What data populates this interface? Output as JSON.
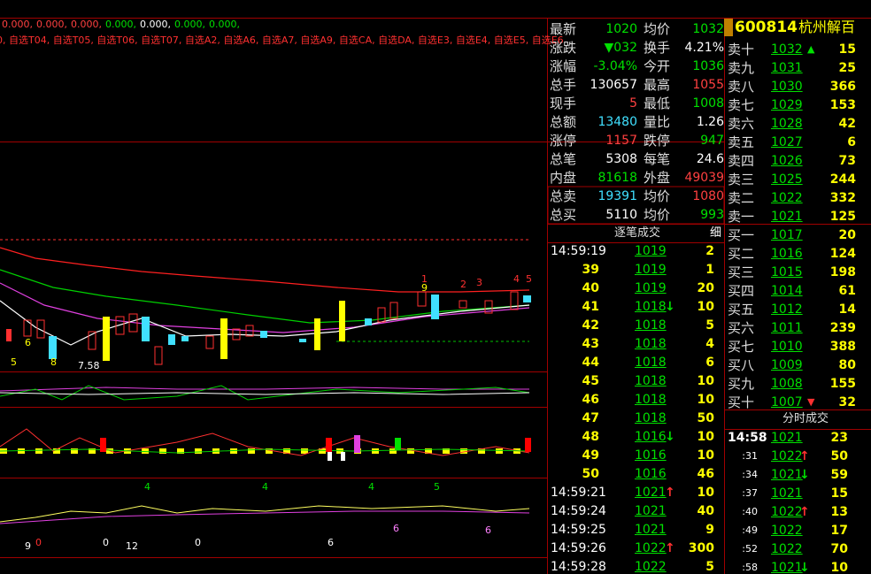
{
  "header": {
    "line1": [
      {
        "text": "0.000,",
        "c": "#ff4040"
      },
      {
        "text": "0.000,",
        "c": "#ff4040"
      },
      {
        "text": "0.000,",
        "c": "#ff4040"
      },
      {
        "text": "0.000,",
        "c": "#00e000"
      },
      {
        "text": "0.000,",
        "c": "#ffffff"
      },
      {
        "text": "0.000,",
        "c": "#00e000"
      },
      {
        "text": "0.000,",
        "c": "#00e000"
      }
    ],
    "line2": "0, 自选T04, 自选T05, 自选T06, 自选T07, 自选A2, 自选A6, 自选A7, 自选A9, 自选CA, 自选DA, 自选E3, 自选E4, 自选E5, 自选E6"
  },
  "chart_labels": [
    "5",
    "6",
    "8",
    "7.58",
    "1",
    "9",
    "2",
    "3",
    "4",
    "5",
    "4",
    "4",
    "4",
    "5",
    "9",
    "0",
    "0",
    "12",
    "0",
    "6",
    "6",
    "6"
  ],
  "quote": {
    "rows": [
      [
        "最新",
        "1020",
        "#00e000",
        "均价",
        "1032",
        "#00e000"
      ],
      [
        "涨跌",
        "▼032",
        "#00e000",
        "换手",
        "4.21%",
        "#ffffff"
      ],
      [
        "涨幅",
        "-3.04%",
        "#00e000",
        "今开",
        "1036",
        "#00e000"
      ],
      [
        "总手",
        "130657",
        "#ffffff",
        "最高",
        "1055",
        "#ff4040"
      ],
      [
        "现手",
        "5",
        "#ff4040",
        "最低",
        "1008",
        "#00e000"
      ],
      [
        "总额",
        "13480",
        "#40e0ff",
        "量比",
        "1.26",
        "#ffffff"
      ],
      [
        "涨停",
        "1157",
        "#ff4040",
        "跌停",
        "947",
        "#00e000"
      ],
      [
        "总笔",
        "5308",
        "#ffffff",
        "每笔",
        "24.6",
        "#ffffff"
      ],
      [
        "内盘",
        "81618",
        "#00e000",
        "外盘",
        "49039",
        "#ff4040"
      ],
      [
        "总卖",
        "19391",
        "#40e0ff",
        "均价",
        "1080",
        "#ff4040"
      ],
      [
        "总买",
        "5110",
        "#ffffff",
        "均价",
        "993",
        "#00e000"
      ]
    ]
  },
  "trades": {
    "title": "逐笔成交",
    "detail": "细",
    "rows": [
      [
        "14:59:19",
        "1019",
        "",
        "2"
      ],
      [
        "39",
        "1019",
        "",
        "1"
      ],
      [
        "40",
        "1019",
        "",
        "20"
      ],
      [
        "41",
        "1018",
        "↓",
        "10"
      ],
      [
        "42",
        "1018",
        "",
        "5"
      ],
      [
        "43",
        "1018",
        "",
        "4"
      ],
      [
        "44",
        "1018",
        "",
        "6"
      ],
      [
        "45",
        "1018",
        "",
        "10"
      ],
      [
        "46",
        "1018",
        "",
        "10"
      ],
      [
        "47",
        "1018",
        "",
        "50"
      ],
      [
        "48",
        "1016",
        "↓",
        "10"
      ],
      [
        "49",
        "1016",
        "",
        "10"
      ],
      [
        "50",
        "1016",
        "",
        "46"
      ],
      [
        "14:59:21",
        "1021",
        "↑",
        "10"
      ],
      [
        "14:59:24",
        "1021",
        "",
        "40"
      ],
      [
        "14:59:25",
        "1021",
        "",
        "9"
      ],
      [
        "14:59:26",
        "1022",
        "↑",
        "300"
      ],
      [
        "14:59:28",
        "1022",
        "",
        "5"
      ]
    ]
  },
  "stock": {
    "code": "600814",
    "name": "杭州解百"
  },
  "depth": {
    "rows": [
      [
        "卖十",
        "1032",
        "▲",
        "15"
      ],
      [
        "卖九",
        "1031",
        "",
        "25"
      ],
      [
        "卖八",
        "1030",
        "",
        "366"
      ],
      [
        "卖七",
        "1029",
        "",
        "153"
      ],
      [
        "卖六",
        "1028",
        "",
        "42"
      ],
      [
        "卖五",
        "1027",
        "",
        "6"
      ],
      [
        "卖四",
        "1026",
        "",
        "73"
      ],
      [
        "卖三",
        "1025",
        "",
        "244"
      ],
      [
        "卖二",
        "1022",
        "",
        "332"
      ],
      [
        "卖一",
        "1021",
        "",
        "125"
      ],
      [
        "买一",
        "1017",
        "",
        "20"
      ],
      [
        "买二",
        "1016",
        "",
        "124"
      ],
      [
        "买三",
        "1015",
        "",
        "198"
      ],
      [
        "买四",
        "1014",
        "",
        "61"
      ],
      [
        "买五",
        "1012",
        "",
        "14"
      ],
      [
        "买六",
        "1011",
        "",
        "239"
      ],
      [
        "买七",
        "1010",
        "",
        "388"
      ],
      [
        "买八",
        "1009",
        "",
        "80"
      ],
      [
        "买九",
        "1008",
        "",
        "155"
      ],
      [
        "买十",
        "1007",
        "▼",
        "32"
      ]
    ]
  },
  "timeshare": {
    "title": "分时成交",
    "rows": [
      [
        "14:58",
        "1021",
        "",
        "23"
      ],
      [
        ":31",
        "1022",
        "↑",
        "50"
      ],
      [
        ":34",
        "1021",
        "↓",
        "59"
      ],
      [
        ":37",
        "1021",
        "",
        "15"
      ],
      [
        ":40",
        "1022",
        "↑",
        "13"
      ],
      [
        ":49",
        "1022",
        "",
        "17"
      ],
      [
        ":52",
        "1022",
        "",
        "70"
      ],
      [
        ":58",
        "1021",
        "↓",
        "10"
      ]
    ]
  }
}
